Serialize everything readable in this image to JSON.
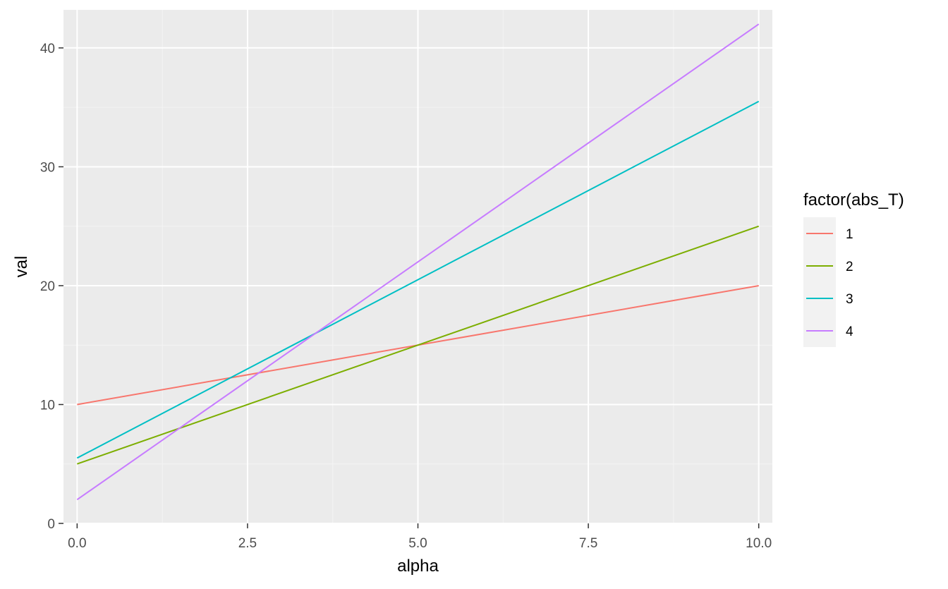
{
  "chart_data": {
    "type": "line",
    "xlabel": "alpha",
    "ylabel": "val",
    "xlim": [
      -0.2,
      10.2
    ],
    "ylim": [
      0,
      43.2
    ],
    "x_ticks": [
      0.0,
      2.5,
      5.0,
      7.5,
      10.0
    ],
    "x_tick_labels": [
      "0.0",
      "2.5",
      "5.0",
      "7.5",
      "10.0"
    ],
    "y_ticks": [
      0,
      10,
      20,
      30,
      40
    ],
    "y_tick_labels": [
      "0",
      "10",
      "20",
      "30",
      "40"
    ],
    "grid": true,
    "legend": {
      "title": "factor(abs_T)",
      "position": "right"
    },
    "series": [
      {
        "name": "1",
        "color": "#F8766D",
        "x": [
          0,
          10
        ],
        "y": [
          10,
          20
        ]
      },
      {
        "name": "2",
        "color": "#7CAE00",
        "x": [
          0,
          10
        ],
        "y": [
          5,
          25
        ]
      },
      {
        "name": "3",
        "color": "#00BFC4",
        "x": [
          0,
          10
        ],
        "y": [
          5.5,
          35.5
        ]
      },
      {
        "name": "4",
        "color": "#C77CFF",
        "x": [
          0,
          10
        ],
        "y": [
          2,
          42
        ]
      }
    ],
    "colors": {
      "panel_background": "#EBEBEB",
      "grid_major": "#FFFFFF",
      "grid_minor": "#F4F4F4",
      "legend_key_background": "#F2F2F2",
      "tick_mark": "#333333"
    }
  }
}
